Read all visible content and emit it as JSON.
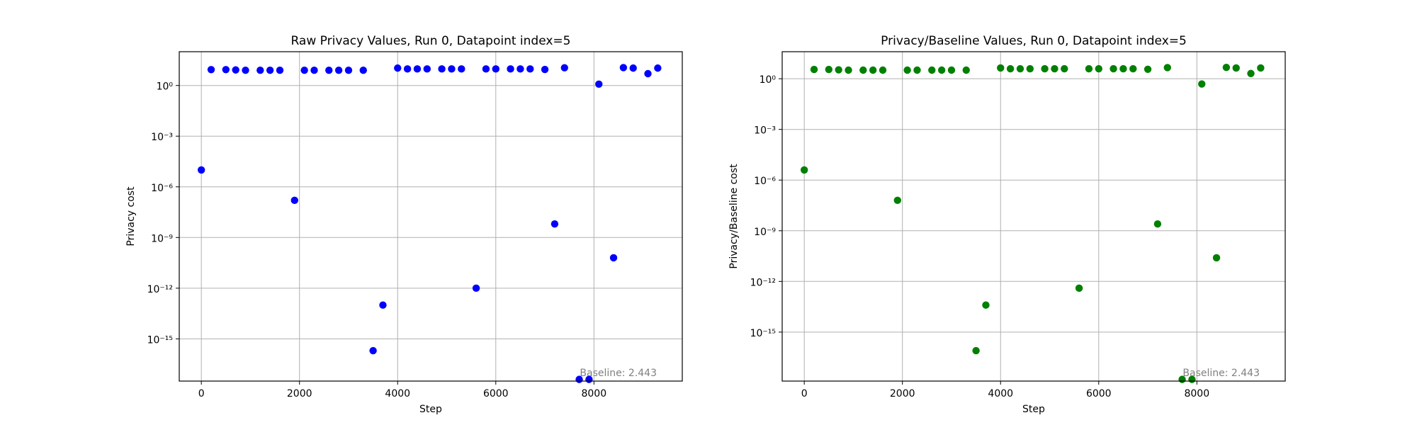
{
  "chart_data": [
    {
      "type": "scatter",
      "title": "Raw Privacy Values, Run 0, Datapoint index=5",
      "xlabel": "Step",
      "ylabel": "Privacy cost",
      "xscale": "linear",
      "yscale": "log",
      "xlim": [
        -450,
        9800
      ],
      "ylim_log10": [
        -17.5,
        2.0
      ],
      "xticks": [
        0,
        2000,
        4000,
        6000,
        8000
      ],
      "yticks_log10": [
        0,
        -3,
        -6,
        -9,
        -12,
        -15
      ],
      "grid": true,
      "marker_color": "#0000ff",
      "annotation": "Baseline: 2.443",
      "annotation_placement": "bottom-right",
      "series": [
        {
          "x": [
            0,
            200,
            500,
            700,
            900,
            1200,
            1400,
            1600,
            1900,
            2100,
            2300,
            2600,
            2800,
            3000,
            3300,
            3500,
            3700,
            4000,
            4200,
            4400,
            4600,
            4900,
            5100,
            5300,
            5600,
            5800,
            6000,
            6300,
            6500,
            6700,
            7000,
            7200,
            7400,
            7700,
            7900,
            8100,
            8400,
            8600,
            8800,
            9100,
            9300
          ],
          "y_log10": [
            -5.0,
            0.94,
            0.94,
            0.92,
            0.9,
            0.9,
            0.9,
            0.9,
            -6.8,
            0.9,
            0.9,
            0.9,
            0.9,
            0.9,
            0.9,
            -15.7,
            -13.0,
            1.03,
            0.98,
            0.98,
            0.98,
            0.98,
            0.98,
            0.98,
            -12.0,
            0.98,
            0.98,
            0.98,
            0.98,
            0.98,
            0.95,
            -8.2,
            1.05,
            -17.4,
            -17.4,
            0.08,
            -10.2,
            1.06,
            1.03,
            0.7,
            1.03
          ]
        }
      ]
    },
    {
      "type": "scatter",
      "title": "Privacy/Baseline Values, Run 0, Datapoint index=5",
      "xlabel": "Step",
      "ylabel": "Privacy/Baseline cost",
      "xscale": "linear",
      "yscale": "log",
      "xlim": [
        -450,
        9800
      ],
      "ylim_log10": [
        -17.9,
        1.6
      ],
      "xticks": [
        0,
        2000,
        4000,
        6000,
        8000
      ],
      "yticks_log10": [
        0,
        -3,
        -6,
        -9,
        -12,
        -15
      ],
      "grid": true,
      "marker_color": "#008000",
      "annotation": "Baseline: 2.443",
      "annotation_placement": "bottom-right",
      "series": [
        {
          "x": [
            0,
            200,
            500,
            700,
            900,
            1200,
            1400,
            1600,
            1900,
            2100,
            2300,
            2600,
            2800,
            3000,
            3300,
            3500,
            3700,
            4000,
            4200,
            4400,
            4600,
            4900,
            5100,
            5300,
            5600,
            5800,
            6000,
            6300,
            6500,
            6700,
            7000,
            7200,
            7400,
            7700,
            7900,
            8100,
            8400,
            8600,
            8800,
            9100,
            9300
          ],
          "y_log10": [
            -5.4,
            0.55,
            0.55,
            0.53,
            0.51,
            0.51,
            0.51,
            0.51,
            -7.2,
            0.51,
            0.51,
            0.51,
            0.51,
            0.51,
            0.51,
            -16.1,
            -13.4,
            0.64,
            0.59,
            0.59,
            0.59,
            0.59,
            0.59,
            0.59,
            -12.4,
            0.59,
            0.59,
            0.59,
            0.59,
            0.59,
            0.56,
            -8.6,
            0.66,
            -17.8,
            -17.8,
            -0.31,
            -10.6,
            0.67,
            0.64,
            0.31,
            0.64
          ]
        }
      ]
    }
  ]
}
